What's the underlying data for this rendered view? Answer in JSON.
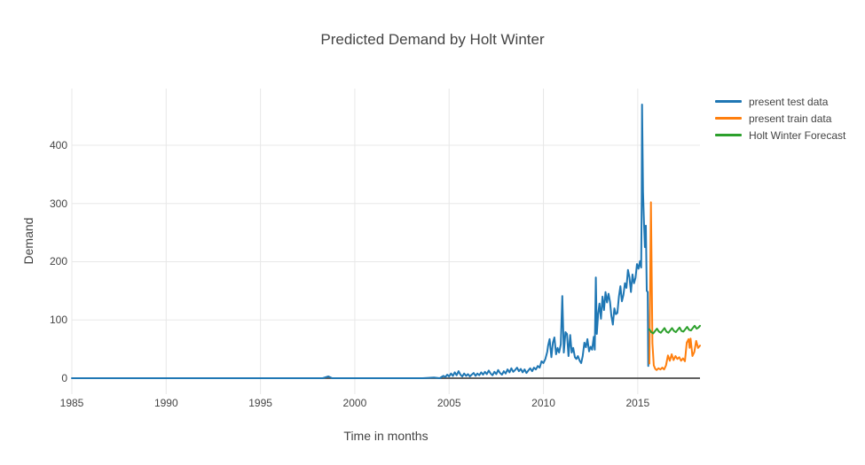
{
  "chart_data": {
    "type": "line",
    "title": "Predicted Demand by Holt Winter",
    "xlabel": "Time in months",
    "ylabel": "Demand",
    "grid": true,
    "legend_position": "outside-top-right",
    "background_color": "#ffffff",
    "grid_color": "#e8e8e8",
    "zeroline_color": "#4a4a4a",
    "text_color": "#444444",
    "xlim": [
      1985,
      2018.3
    ],
    "ylim": [
      -27.4,
      497.3
    ],
    "x_ticks": {
      "values": [
        1985,
        1990,
        1995,
        2000,
        2005,
        2010,
        2015
      ],
      "labels": [
        "1985",
        "1990",
        "1995",
        "2000",
        "2005",
        "2010",
        "2015"
      ]
    },
    "y_ticks": {
      "values": [
        0,
        100,
        200,
        300,
        400
      ],
      "labels": [
        "0",
        "100",
        "200",
        "300",
        "400"
      ]
    },
    "series": [
      {
        "name": "present test data",
        "color": "#1f77b4",
        "points": [
          [
            1985,
            0
          ],
          [
            1986,
            0
          ],
          [
            1987,
            0
          ],
          [
            1988,
            0
          ],
          [
            1989,
            0
          ],
          [
            1990,
            0
          ],
          [
            1991,
            0
          ],
          [
            1992,
            0
          ],
          [
            1993,
            0
          ],
          [
            1994,
            0
          ],
          [
            1995,
            0
          ],
          [
            1996,
            0
          ],
          [
            1997,
            0
          ],
          [
            1998.3,
            0
          ],
          [
            1998.6,
            3
          ],
          [
            1998.8,
            0
          ],
          [
            1999.6,
            0
          ],
          [
            2000.6,
            0
          ],
          [
            2001.6,
            0
          ],
          [
            2002.6,
            0
          ],
          [
            2003.6,
            0
          ],
          [
            2004.2,
            1
          ],
          [
            2004.5,
            0
          ],
          [
            2004.7,
            4
          ],
          [
            2004.8,
            2
          ],
          [
            2004.9,
            6
          ],
          [
            2005,
            3
          ],
          [
            2005.1,
            8
          ],
          [
            2005.2,
            4
          ],
          [
            2005.3,
            10
          ],
          [
            2005.4,
            5
          ],
          [
            2005.5,
            12
          ],
          [
            2005.6,
            6
          ],
          [
            2005.7,
            3
          ],
          [
            2005.8,
            8
          ],
          [
            2005.9,
            4
          ],
          [
            2006,
            7
          ],
          [
            2006.1,
            3
          ],
          [
            2006.2,
            6
          ],
          [
            2006.3,
            9
          ],
          [
            2006.4,
            4
          ],
          [
            2006.5,
            8
          ],
          [
            2006.6,
            5
          ],
          [
            2006.7,
            10
          ],
          [
            2006.8,
            6
          ],
          [
            2006.9,
            11
          ],
          [
            2007,
            7
          ],
          [
            2007.1,
            13
          ],
          [
            2007.2,
            8
          ],
          [
            2007.3,
            5
          ],
          [
            2007.4,
            11
          ],
          [
            2007.5,
            7
          ],
          [
            2007.6,
            14
          ],
          [
            2007.7,
            9
          ],
          [
            2007.8,
            6
          ],
          [
            2007.9,
            12
          ],
          [
            2008,
            8
          ],
          [
            2008.1,
            15
          ],
          [
            2008.2,
            10
          ],
          [
            2008.3,
            17
          ],
          [
            2008.4,
            11
          ],
          [
            2008.5,
            14
          ],
          [
            2008.6,
            18
          ],
          [
            2008.7,
            12
          ],
          [
            2008.8,
            16
          ],
          [
            2008.9,
            10
          ],
          [
            2009,
            15
          ],
          [
            2009.1,
            9
          ],
          [
            2009.2,
            13
          ],
          [
            2009.3,
            17
          ],
          [
            2009.4,
            12
          ],
          [
            2009.5,
            18
          ],
          [
            2009.6,
            15
          ],
          [
            2009.7,
            21
          ],
          [
            2009.8,
            18
          ],
          [
            2009.9,
            29
          ],
          [
            2010,
            26
          ],
          [
            2010.1,
            33
          ],
          [
            2010.2,
            45
          ],
          [
            2010.25,
            56
          ],
          [
            2010.33,
            67
          ],
          [
            2010.42,
            36
          ],
          [
            2010.5,
            61
          ],
          [
            2010.58,
            70
          ],
          [
            2010.67,
            41
          ],
          [
            2010.75,
            52
          ],
          [
            2010.83,
            44
          ],
          [
            2010.92,
            58
          ],
          [
            2011,
            141
          ],
          [
            2011.08,
            44
          ],
          [
            2011.17,
            79
          ],
          [
            2011.25,
            76
          ],
          [
            2011.33,
            38
          ],
          [
            2011.42,
            74
          ],
          [
            2011.5,
            44
          ],
          [
            2011.58,
            52
          ],
          [
            2011.67,
            36
          ],
          [
            2011.75,
            33
          ],
          [
            2011.83,
            38
          ],
          [
            2011.92,
            30
          ],
          [
            2012,
            26
          ],
          [
            2012.08,
            38
          ],
          [
            2012.17,
            61
          ],
          [
            2012.25,
            53
          ],
          [
            2012.33,
            67
          ],
          [
            2012.42,
            46
          ],
          [
            2012.5,
            54
          ],
          [
            2012.58,
            49
          ],
          [
            2012.67,
            71
          ],
          [
            2012.72,
            49
          ],
          [
            2012.78,
            173
          ],
          [
            2012.83,
            76
          ],
          [
            2012.9,
            110
          ],
          [
            2012.97,
            128
          ],
          [
            2013.05,
            102
          ],
          [
            2013.13,
            140
          ],
          [
            2013.21,
            117
          ],
          [
            2013.29,
            148
          ],
          [
            2013.37,
            130
          ],
          [
            2013.45,
            145
          ],
          [
            2013.53,
            131
          ],
          [
            2013.6,
            107
          ],
          [
            2013.68,
            92
          ],
          [
            2013.76,
            120
          ],
          [
            2013.84,
            110
          ],
          [
            2013.92,
            112
          ],
          [
            2014,
            140
          ],
          [
            2014.08,
            158
          ],
          [
            2014.16,
            132
          ],
          [
            2014.24,
            143
          ],
          [
            2014.32,
            163
          ],
          [
            2014.4,
            155
          ],
          [
            2014.48,
            186
          ],
          [
            2014.56,
            173
          ],
          [
            2014.64,
            148
          ],
          [
            2014.72,
            178
          ],
          [
            2014.8,
            163
          ],
          [
            2014.88,
            172
          ],
          [
            2014.96,
            196
          ],
          [
            2015.04,
            188
          ],
          [
            2015.12,
            201
          ],
          [
            2015.18,
            190
          ],
          [
            2015.21,
            305
          ],
          [
            2015.23,
            470
          ],
          [
            2015.28,
            320
          ],
          [
            2015.33,
            266
          ],
          [
            2015.38,
            225
          ],
          [
            2015.43,
            262
          ],
          [
            2015.48,
            150
          ],
          [
            2015.53,
            148
          ],
          [
            2015.56,
            21
          ]
        ]
      },
      {
        "name": "present train data",
        "color": "#ff7f0e",
        "points": [
          [
            2015.62,
            25
          ],
          [
            2015.7,
            302
          ],
          [
            2015.78,
            60
          ],
          [
            2015.85,
            22
          ],
          [
            2015.93,
            16
          ],
          [
            2016,
            14
          ],
          [
            2016.1,
            17
          ],
          [
            2016.2,
            15
          ],
          [
            2016.3,
            18
          ],
          [
            2016.4,
            15
          ],
          [
            2016.5,
            22
          ],
          [
            2016.6,
            39
          ],
          [
            2016.7,
            30
          ],
          [
            2016.8,
            41
          ],
          [
            2016.9,
            31
          ],
          [
            2017,
            38
          ],
          [
            2017.1,
            33
          ],
          [
            2017.2,
            36
          ],
          [
            2017.3,
            30
          ],
          [
            2017.4,
            34
          ],
          [
            2017.5,
            29
          ],
          [
            2017.6,
            61
          ],
          [
            2017.7,
            67
          ],
          [
            2017.75,
            52
          ],
          [
            2017.8,
            68
          ],
          [
            2017.9,
            38
          ],
          [
            2018,
            45
          ],
          [
            2018.1,
            64
          ],
          [
            2018.2,
            52
          ],
          [
            2018.3,
            56
          ]
        ]
      },
      {
        "name": "Holt Winter Forecast",
        "color": "#2ca02c",
        "points": [
          [
            2015.62,
            84
          ],
          [
            2015.72,
            79
          ],
          [
            2015.82,
            77
          ],
          [
            2015.92,
            81
          ],
          [
            2016.02,
            85
          ],
          [
            2016.12,
            80
          ],
          [
            2016.22,
            78
          ],
          [
            2016.32,
            82
          ],
          [
            2016.42,
            86
          ],
          [
            2016.52,
            80
          ],
          [
            2016.62,
            78
          ],
          [
            2016.72,
            82
          ],
          [
            2016.82,
            86
          ],
          [
            2016.92,
            81
          ],
          [
            2017.02,
            79
          ],
          [
            2017.12,
            83
          ],
          [
            2017.22,
            87
          ],
          [
            2017.32,
            81
          ],
          [
            2017.42,
            80
          ],
          [
            2017.52,
            84
          ],
          [
            2017.62,
            88
          ],
          [
            2017.72,
            83
          ],
          [
            2017.82,
            82
          ],
          [
            2017.92,
            86
          ],
          [
            2018.02,
            90
          ],
          [
            2018.12,
            85
          ],
          [
            2018.22,
            87
          ],
          [
            2018.3,
            90
          ]
        ]
      }
    ]
  }
}
